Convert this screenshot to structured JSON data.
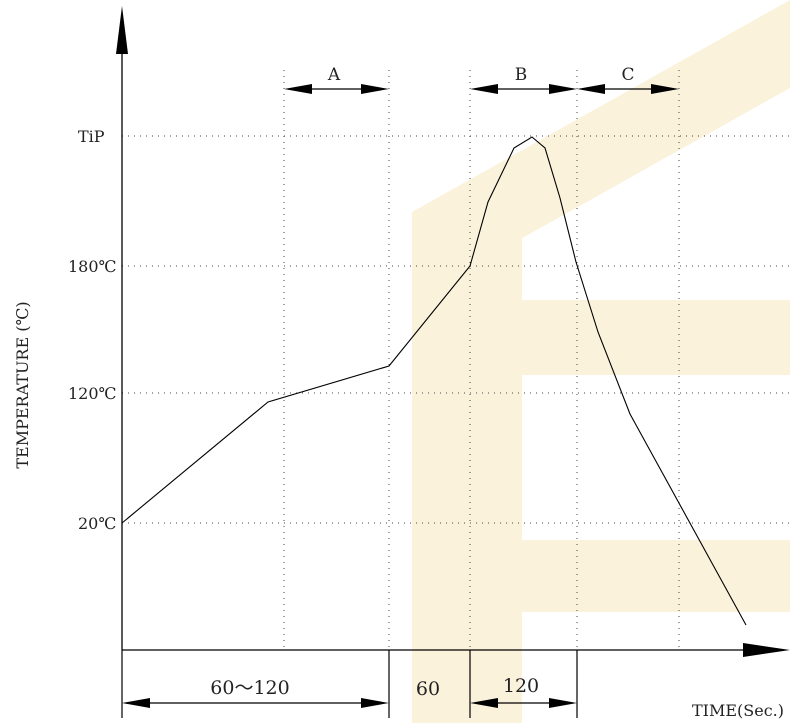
{
  "watermark": {
    "color": "#fbf2dc",
    "shape": "E-logo"
  },
  "diagram": {
    "y_axis_title": "TEMPERATURE (℃)",
    "x_axis_title": "TIME(Sec.)",
    "y_levels": [
      {
        "label": "TiP"
      },
      {
        "label": "180℃"
      },
      {
        "label": "120℃"
      },
      {
        "label": "20℃"
      }
    ],
    "regions": [
      {
        "label": "A"
      },
      {
        "label": "B"
      },
      {
        "label": "C"
      }
    ],
    "durations": [
      {
        "label": "60～120"
      },
      {
        "label": "60"
      },
      {
        "label": "120"
      }
    ]
  }
}
